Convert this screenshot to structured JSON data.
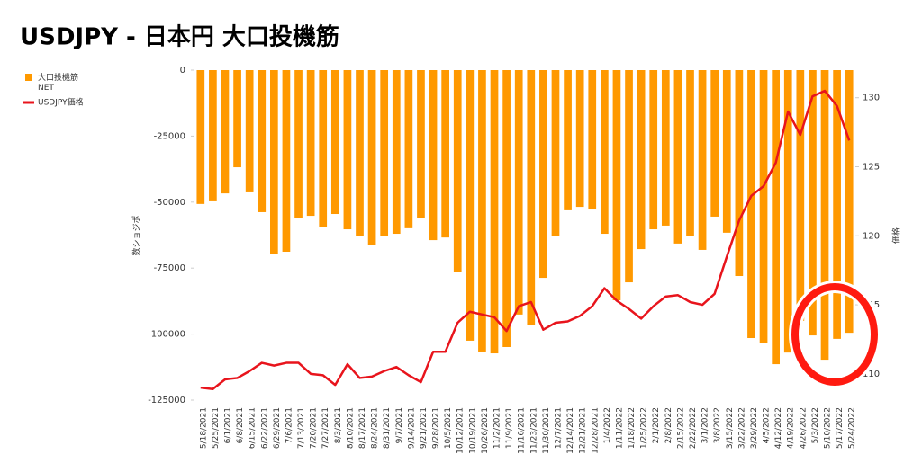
{
  "chart_data": {
    "type": "bar_line",
    "title": "USDJPY - 日本円 大口投機筋",
    "y_label": "数ショジポ",
    "y2_label": "価格",
    "categories": [
      "5/18/2021",
      "5/25/2021",
      "6/1/2021",
      "6/8/2021",
      "6/15/2021",
      "6/22/2021",
      "6/29/2021",
      "7/6/2021",
      "7/13/2021",
      "7/20/2021",
      "7/27/2021",
      "8/3/2021",
      "8/10/2021",
      "8/17/2021",
      "8/24/2021",
      "8/31/2021",
      "9/7/2021",
      "9/14/2021",
      "9/21/2021",
      "9/28/2021",
      "10/5/2021",
      "10/12/2021",
      "10/19/2021",
      "10/26/2021",
      "11/2/2021",
      "11/9/2021",
      "11/16/2021",
      "11/23/2021",
      "11/30/2021",
      "12/7/2021",
      "12/14/2021",
      "12/21/2021",
      "12/28/2021",
      "1/4/2022",
      "1/11/2022",
      "1/18/2022",
      "1/25/2022",
      "2/1/2022",
      "2/8/2022",
      "2/15/2022",
      "2/22/2022",
      "3/1/2022",
      "3/8/2022",
      "3/15/2022",
      "3/22/2022",
      "3/29/2022",
      "4/5/2022",
      "4/12/2022",
      "4/19/2022",
      "4/26/2022",
      "5/3/2022",
      "5/10/2022",
      "5/17/2022",
      "5/24/2022"
    ],
    "series": [
      {
        "name": "大口投機筋 NET",
        "color": "#ff9900",
        "kind": "bar",
        "values": [
          -50700,
          -49700,
          -46700,
          -36800,
          -46300,
          -53800,
          -69500,
          -68800,
          -55900,
          -55200,
          -59300,
          -54500,
          -60300,
          -62700,
          -66100,
          -62700,
          -62000,
          -59900,
          -55900,
          -64400,
          -63400,
          -76300,
          -102500,
          -106600,
          -107300,
          -104900,
          -92600,
          -96700,
          -78700,
          -62700,
          -53100,
          -51800,
          -52800,
          -62000,
          -87200,
          -80400,
          -67800,
          -60300,
          -58900,
          -65700,
          -62700,
          -68100,
          -55500,
          -61600,
          -78000,
          -101500,
          -103500,
          -111400,
          -107000,
          -95000,
          -100500,
          -109700,
          -101800,
          -99500
        ]
      },
      {
        "name": "USDJPY価格",
        "color": "#e8141c",
        "kind": "line",
        "axis": "y2",
        "values": [
          109.0,
          108.9,
          109.6,
          109.7,
          110.2,
          110.8,
          110.6,
          110.8,
          110.8,
          110.0,
          109.9,
          109.2,
          110.7,
          109.7,
          109.8,
          110.2,
          110.5,
          109.9,
          109.4,
          111.6,
          111.6,
          113.7,
          114.5,
          114.3,
          114.1,
          113.1,
          114.9,
          115.2,
          113.2,
          113.7,
          113.8,
          114.2,
          114.9,
          116.2,
          115.3,
          114.7,
          114.0,
          114.9,
          115.6,
          115.7,
          115.2,
          115.0,
          115.8,
          118.5,
          121.1,
          122.9,
          123.6,
          125.3,
          129.0,
          127.3,
          130.1,
          130.5,
          129.4,
          126.9
        ]
      }
    ],
    "ylim": [
      -125000,
      0
    ],
    "yticks": [
      0,
      -25000,
      -50000,
      -75000,
      -100000,
      -125000
    ],
    "y2lim": [
      108.1,
      132
    ],
    "y2ticks": [
      110,
      115,
      120,
      125,
      130
    ],
    "legend": "left"
  }
}
